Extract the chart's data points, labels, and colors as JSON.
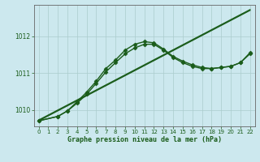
{
  "background_color": "#cce8ee",
  "grid_color": "#aacccc",
  "line_color": "#1a5c1a",
  "xlabel": "Graphe pression niveau de la mer (hPa)",
  "xlim": [
    -0.5,
    22.5
  ],
  "ylim": [
    1009.55,
    1012.85
  ],
  "yticks": [
    1010,
    1011,
    1012
  ],
  "xticks": [
    0,
    1,
    2,
    3,
    4,
    5,
    6,
    7,
    8,
    9,
    10,
    11,
    12,
    13,
    14,
    15,
    16,
    17,
    18,
    19,
    20,
    21,
    22
  ],
  "series": [
    {
      "x": [
        0,
        22
      ],
      "y": [
        1009.7,
        1012.7
      ],
      "marker": null,
      "linewidth": 1.0
    },
    {
      "x": [
        0,
        22
      ],
      "y": [
        1009.72,
        1012.72
      ],
      "marker": null,
      "linewidth": 1.0
    },
    {
      "x": [
        0,
        2,
        3,
        4,
        5,
        6,
        7,
        8,
        9,
        10,
        11,
        12,
        13,
        14,
        15,
        16,
        17,
        18,
        19,
        20,
        21,
        22
      ],
      "y": [
        1009.7,
        1009.82,
        1009.97,
        1010.18,
        1010.42,
        1010.72,
        1011.03,
        1011.28,
        1011.52,
        1011.68,
        1011.78,
        1011.78,
        1011.62,
        1011.42,
        1011.28,
        1011.18,
        1011.12,
        1011.12,
        1011.15,
        1011.18,
        1011.28,
        1011.52
      ],
      "marker": "D",
      "markersize": 2.5,
      "linewidth": 1.0
    },
    {
      "x": [
        0,
        2,
        3,
        4,
        5,
        6,
        7,
        8,
        9,
        10,
        11,
        12,
        13,
        14,
        15,
        16,
        17,
        18,
        19,
        20,
        21,
        22
      ],
      "y": [
        1009.7,
        1009.82,
        1009.97,
        1010.22,
        1010.48,
        1010.78,
        1011.12,
        1011.35,
        1011.62,
        1011.78,
        1011.85,
        1011.82,
        1011.65,
        1011.45,
        1011.32,
        1011.22,
        1011.15,
        1011.12,
        1011.15,
        1011.18,
        1011.28,
        1011.55
      ],
      "marker": "D",
      "markersize": 2.5,
      "linewidth": 1.0
    }
  ]
}
